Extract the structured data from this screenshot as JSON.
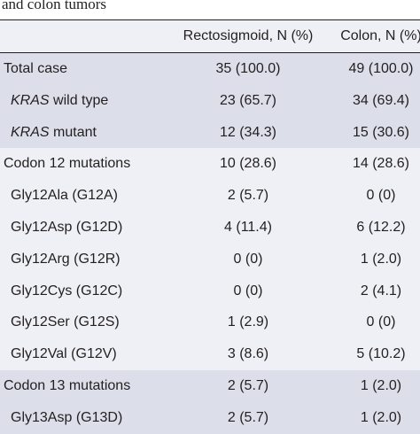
{
  "title": "and colon tumors",
  "table": {
    "columns": [
      "Rectosigmoid, N (%)",
      "Colon, N (%)"
    ],
    "groups": [
      {
        "label": "Total case",
        "values": [
          "35 (100.0)",
          "49 (100.0)"
        ],
        "items": [
          {
            "label": {
              "italic": "KRAS",
              "text": "wild type"
            },
            "values": [
              "23 (65.7)",
              "34 (69.4)"
            ]
          },
          {
            "label": {
              "italic": "KRAS",
              "text": "mutant"
            },
            "values": [
              "12 (34.3)",
              "15 (30.6)"
            ]
          }
        ]
      },
      {
        "label": "Codon 12 mutations",
        "values": [
          "10 (28.6)",
          "14 (28.6)"
        ],
        "items": [
          {
            "label": {
              "text": "Gly12Ala (G12A)"
            },
            "values": [
              "2 (5.7)",
              "0 (0)"
            ]
          },
          {
            "label": {
              "text": "Gly12Asp (G12D)"
            },
            "values": [
              "4 (11.4)",
              "6 (12.2)"
            ]
          },
          {
            "label": {
              "text": "Gly12Arg (G12R)"
            },
            "values": [
              "0 (0)",
              "1 (2.0)"
            ]
          },
          {
            "label": {
              "text": "Gly12Cys (G12C)"
            },
            "values": [
              "0 (0)",
              "2 (4.1)"
            ]
          },
          {
            "label": {
              "text": "Gly12Ser (G12S)"
            },
            "values": [
              "1 (2.9)",
              "0 (0)"
            ]
          },
          {
            "label": {
              "text": "Gly12Val (G12V)"
            },
            "values": [
              "3 (8.6)",
              "5 (10.2)"
            ]
          }
        ]
      },
      {
        "label": "Codon 13 mutations",
        "values": [
          "2 (5.7)",
          "1 (2.0)"
        ],
        "items": [
          {
            "label": {
              "text": "Gly13Asp (G13D)"
            },
            "values": [
              "2 (5.7)",
              "1 (2.0)"
            ]
          }
        ]
      }
    ]
  }
}
